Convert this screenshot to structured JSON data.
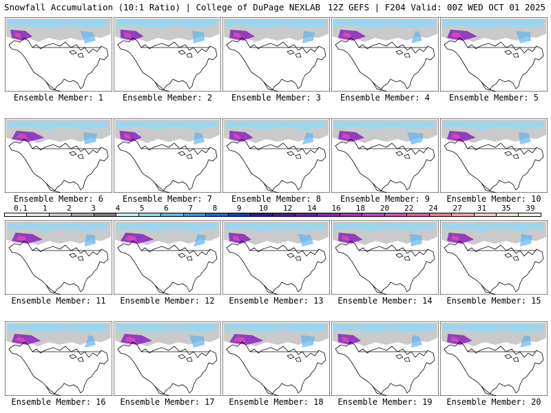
{
  "header": {
    "title_left": "Snowfall Accumulation (10:1 Ratio) | College of DuPage NEXLAB",
    "title_right": "12Z GEFS | F204 Valid: 00Z WED OCT 01 2025"
  },
  "panels": [
    {
      "label": "Ensemble Member: 1"
    },
    {
      "label": "Ensemble Member: 2"
    },
    {
      "label": "Ensemble Member: 3"
    },
    {
      "label": "Ensemble Member: 4"
    },
    {
      "label": "Ensemble Member: 5"
    },
    {
      "label": "Ensemble Member: 6"
    },
    {
      "label": "Ensemble Member: 7"
    },
    {
      "label": "Ensemble Member: 8"
    },
    {
      "label": "Ensemble Member: 9"
    },
    {
      "label": "Ensemble Member: 10"
    },
    {
      "label": "Ensemble Member: 11"
    },
    {
      "label": "Ensemble Member: 12"
    },
    {
      "label": "Ensemble Member: 13"
    },
    {
      "label": "Ensemble Member: 14"
    },
    {
      "label": "Ensemble Member: 15"
    },
    {
      "label": "Ensemble Member: 16"
    },
    {
      "label": "Ensemble Member: 17"
    },
    {
      "label": "Ensemble Member: 18"
    },
    {
      "label": "Ensemble Member: 19"
    },
    {
      "label": "Ensemble Member: 20"
    }
  ],
  "legend": {
    "labels": [
      "0.1",
      "1",
      "2",
      "3",
      "4",
      "5",
      "6",
      "7",
      "8",
      "9",
      "10",
      "12",
      "14",
      "16",
      "18",
      "20",
      "22",
      "24",
      "27",
      "31",
      "35",
      "39"
    ],
    "colors": [
      "#ffffff",
      "#e6e6e6",
      "#c8c8c8",
      "#a0a0a0",
      "#7a7a7a",
      "#bfefff",
      "#8ed8f8",
      "#5fb4f0",
      "#3a8fe6",
      "#1f64d8",
      "#0c3fc8",
      "#2a1aa8",
      "#4a18a0",
      "#6a1cb0",
      "#8a24c0",
      "#a82ec8",
      "#c23cc8",
      "#d448b4",
      "#e05a9c",
      "#ea7a8a",
      "#f2a0a0",
      "#f8c8b8",
      "#fbe2d0",
      "#fdf0e6"
    ]
  }
}
